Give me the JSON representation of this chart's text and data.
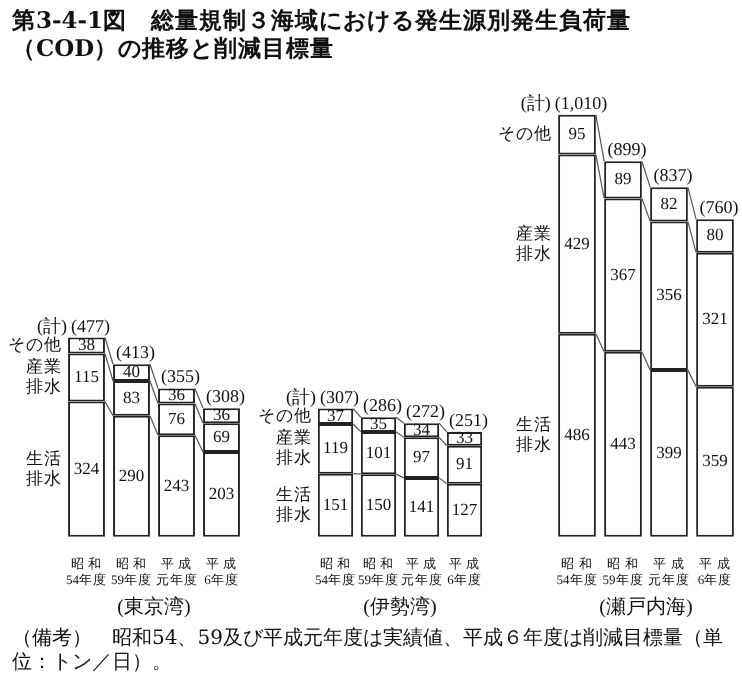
{
  "chart_data": [
    {
      "type": "bar",
      "stacked": true,
      "data_labels": true,
      "title": "第3-4-1図　総量規制３海域における発生源別発生負荷量（COD）の推移と削減目標量",
      "xlabel": "(東京湾)",
      "categories": [
        "昭和54年度",
        "昭和59年度",
        "平成元年度",
        "平成6年度"
      ],
      "series": [
        {
          "name": "生活排水",
          "color": "#ffffff",
          "values": [
            324,
            290,
            243,
            203
          ]
        },
        {
          "name": "産業排水",
          "color": "#ffffff",
          "values": [
            115,
            83,
            76,
            69
          ]
        },
        {
          "name": "その他",
          "color": "#ffffff",
          "values": [
            38,
            40,
            36,
            36
          ]
        }
      ],
      "totals": [
        "(477)",
        "(413)",
        "(355)",
        "(308)"
      ],
      "annotations": [
        "(計)"
      ]
    },
    {
      "type": "bar",
      "stacked": true,
      "data_labels": true,
      "xlabel": "(伊勢湾)",
      "categories": [
        "昭和54年度",
        "昭和59年度",
        "平成元年度",
        "平成6年度"
      ],
      "series": [
        {
          "name": "生活排水",
          "color": "#ffffff",
          "values": [
            151,
            150,
            141,
            127
          ]
        },
        {
          "name": "産業排水",
          "color": "#ffffff",
          "values": [
            119,
            101,
            97,
            91
          ]
        },
        {
          "name": "その他",
          "color": "#ffffff",
          "values": [
            37,
            35,
            34,
            33
          ]
        }
      ],
      "totals": [
        "(307)",
        "(286)",
        "(272)",
        "(251)"
      ],
      "annotations": [
        "(計)"
      ]
    },
    {
      "type": "bar",
      "stacked": true,
      "data_labels": true,
      "xlabel": "(瀬戸内海)",
      "categories": [
        "昭和54年度",
        "昭和59年度",
        "平成元年度",
        "平成6年度"
      ],
      "series": [
        {
          "name": "生活排水",
          "color": "#ffffff",
          "values": [
            486,
            443,
            399,
            359
          ]
        },
        {
          "name": "産業排水",
          "color": "#ffffff",
          "values": [
            429,
            367,
            356,
            321
          ]
        },
        {
          "name": "その他",
          "color": "#ffffff",
          "values": [
            95,
            89,
            82,
            80
          ]
        }
      ],
      "totals": [
        "(1,010)",
        "(899)",
        "(837)",
        "(760)"
      ],
      "annotations": [
        "(計)",
        "（備考）　昭和54、59及び平成元年度は実績値、平成６年度は削減目標量（単位：トン／日）。"
      ]
    }
  ]
}
